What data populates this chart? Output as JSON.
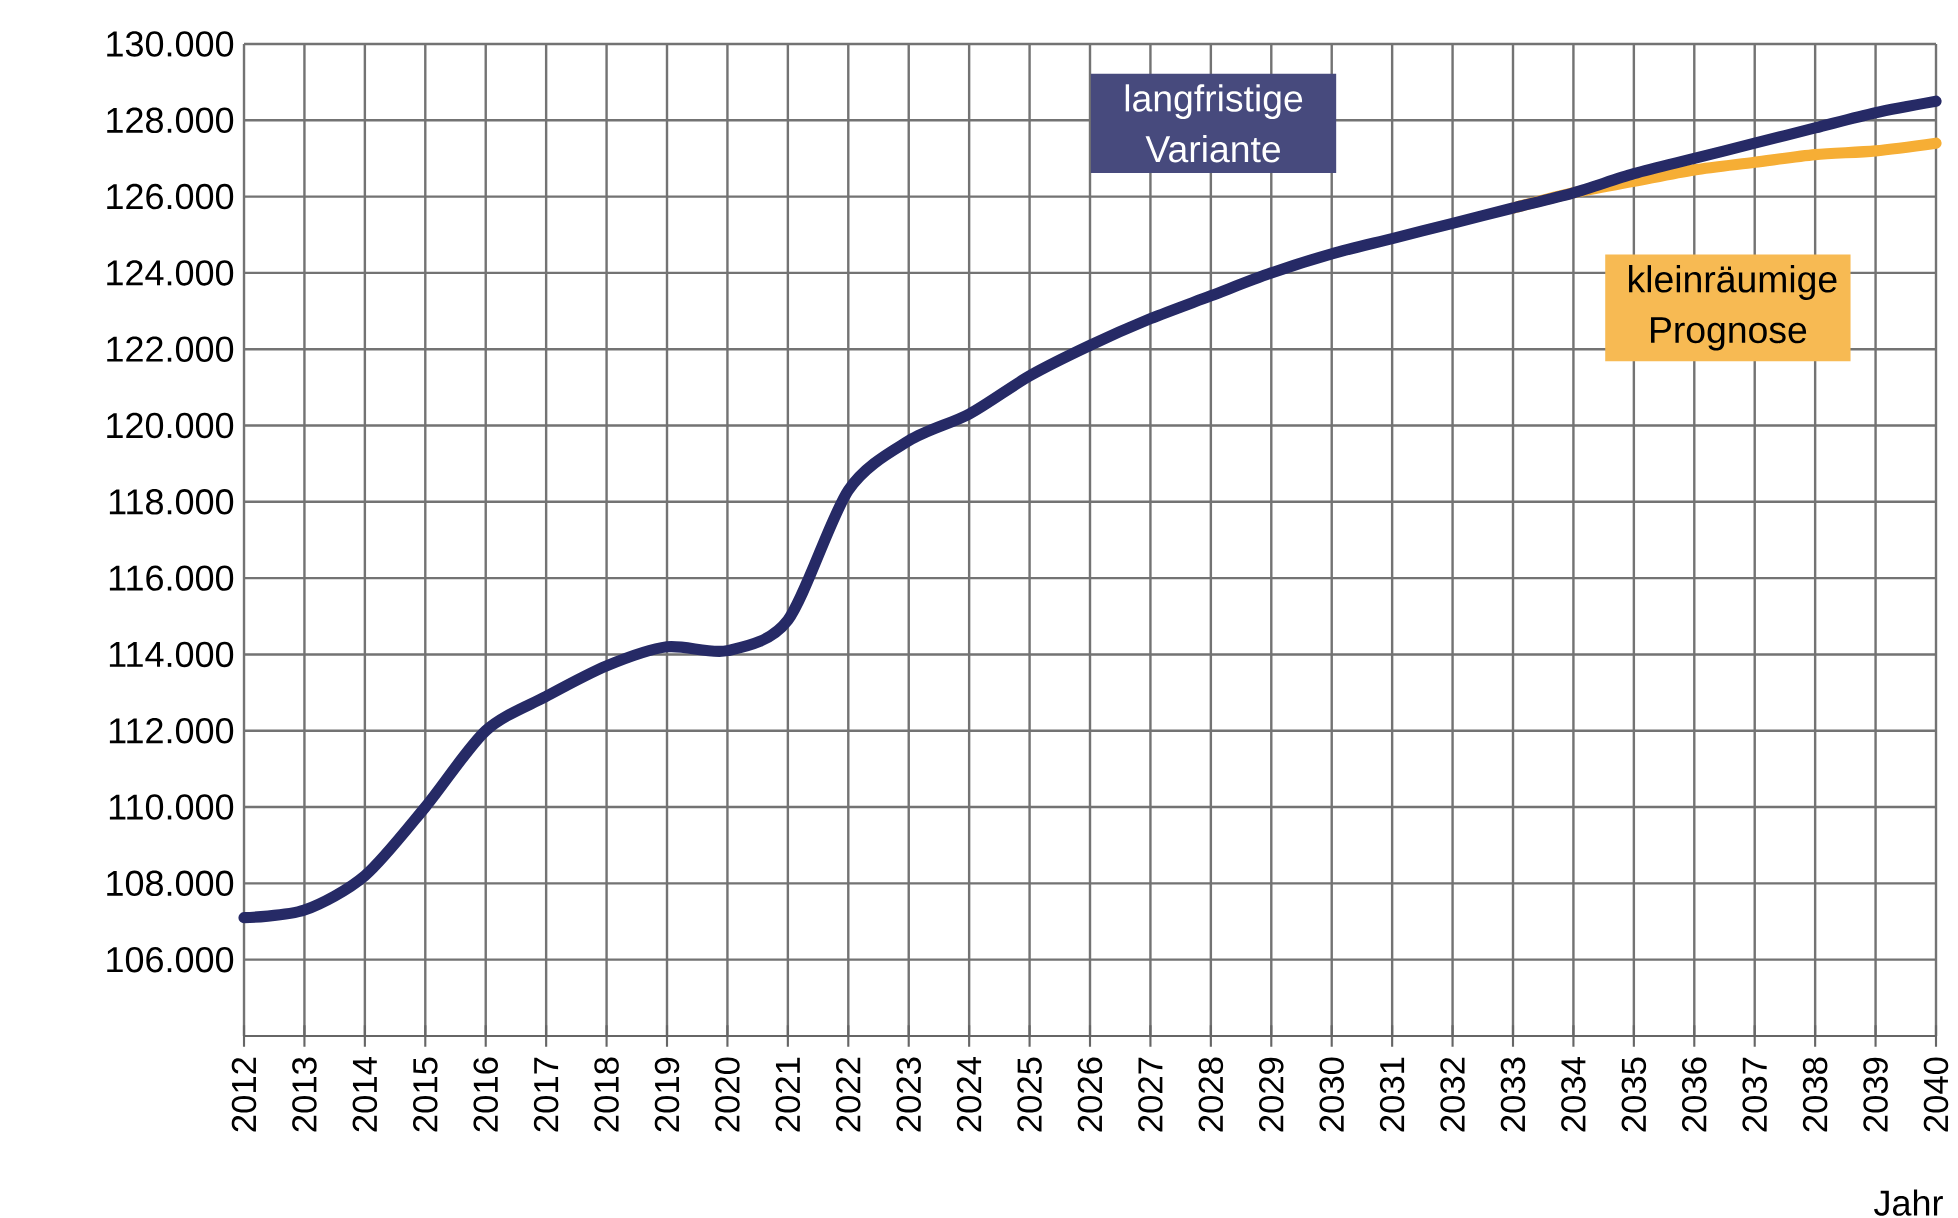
{
  "chart_data": {
    "type": "line",
    "xlabel": "Jahr",
    "categories": [
      "2012",
      "2013",
      "2014",
      "2015",
      "2016",
      "2017",
      "2018",
      "2019",
      "2020",
      "2021",
      "2022",
      "2023",
      "2024",
      "2025",
      "2026",
      "2027",
      "2028",
      "2029",
      "2030",
      "2031",
      "2032",
      "2033",
      "2034",
      "2035",
      "2036",
      "2037",
      "2038",
      "2039",
      "2040"
    ],
    "series": [
      {
        "name": "kleinräumige Prognose",
        "color": "#f6ae35",
        "values": [
          null,
          null,
          null,
          null,
          null,
          null,
          null,
          null,
          null,
          null,
          null,
          null,
          null,
          null,
          null,
          null,
          null,
          null,
          null,
          null,
          null,
          125700,
          126100,
          126400,
          126700,
          126900,
          127100,
          127200,
          127400
        ]
      },
      {
        "name": "langfristige Variante",
        "color": "#262a66",
        "values": [
          107100,
          107300,
          108200,
          110000,
          112000,
          112900,
          113700,
          114200,
          114100,
          114900,
          118300,
          119600,
          120300,
          121300,
          122100,
          122800,
          123400,
          124000,
          124500,
          124900,
          125300,
          125700,
          126100,
          126600,
          127000,
          127400,
          127800,
          128200,
          128500
        ]
      }
    ],
    "ylim": [
      104000,
      130000
    ],
    "yticks": [
      {
        "value": 106000,
        "label": "106.000"
      },
      {
        "value": 108000,
        "label": "108.000"
      },
      {
        "value": 110000,
        "label": "110.000"
      },
      {
        "value": 112000,
        "label": "112.000"
      },
      {
        "value": 114000,
        "label": "114.000"
      },
      {
        "value": 116000,
        "label": "116.000"
      },
      {
        "value": 118000,
        "label": "118.000"
      },
      {
        "value": 120000,
        "label": "120.000"
      },
      {
        "value": 122000,
        "label": "122.000"
      },
      {
        "value": 124000,
        "label": "124.000"
      },
      {
        "value": 126000,
        "label": "126.000"
      },
      {
        "value": 128000,
        "label": "128.000"
      },
      {
        "value": 130000,
        "label": "130.000"
      }
    ],
    "grid": true,
    "line_style": "solid",
    "marker": "none"
  }
}
